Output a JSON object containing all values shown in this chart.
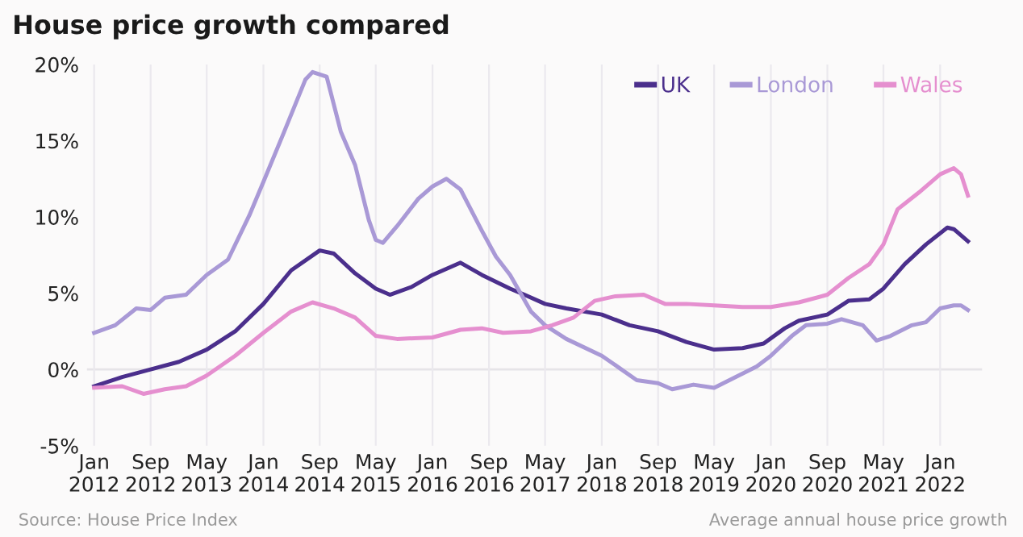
{
  "chart_data": {
    "type": "line",
    "title": "House price growth compared",
    "annotations": [
      "Source: House Price Index",
      "Average annual house price growth"
    ],
    "legend": "top right",
    "grid": "x",
    "line_style": "solid",
    "marker": "none",
    "ylim": [
      -5,
      20
    ],
    "yticks": [
      {
        "value": -5,
        "label": "-5%"
      },
      {
        "value": 0,
        "label": "0%"
      },
      {
        "value": 5,
        "label": "5%"
      },
      {
        "value": 10,
        "label": "10%"
      },
      {
        "value": 15,
        "label": "15%"
      },
      {
        "value": 20,
        "label": "20%"
      }
    ],
    "xlim": [
      "2011-12",
      "2022-07"
    ],
    "xticks": [
      {
        "value": "2012-01",
        "label": "Jan\n2012"
      },
      {
        "value": "2012-09",
        "label": "Sep\n2012"
      },
      {
        "value": "2013-05",
        "label": "May\n2013"
      },
      {
        "value": "2014-01",
        "label": "Jan\n2014"
      },
      {
        "value": "2014-09",
        "label": "Sep\n2014"
      },
      {
        "value": "2015-05",
        "label": "May\n2015"
      },
      {
        "value": "2016-01",
        "label": "Jan\n2016"
      },
      {
        "value": "2016-09",
        "label": "Sep\n2016"
      },
      {
        "value": "2017-05",
        "label": "May\n2017"
      },
      {
        "value": "2018-01",
        "label": "Jan\n2018"
      },
      {
        "value": "2018-09",
        "label": "Sep\n2018"
      },
      {
        "value": "2019-05",
        "label": "May\n2019"
      },
      {
        "value": "2020-01",
        "label": "Jan\n2020"
      },
      {
        "value": "2020-09",
        "label": "Sep\n2020"
      },
      {
        "value": "2021-05",
        "label": "May\n2021"
      },
      {
        "value": "2022-01",
        "label": "Jan\n2022"
      }
    ],
    "ref_lines": [
      {
        "axis": "y",
        "value": 0,
        "color": "#e6e4e8"
      }
    ],
    "series": [
      {
        "name": "UK",
        "color": "#4b2f8c",
        "x": [
          "2012-01",
          "2012-05",
          "2012-09",
          "2013-01",
          "2013-05",
          "2013-09",
          "2014-01",
          "2014-05",
          "2014-09",
          "2014-11",
          "2015-02",
          "2015-05",
          "2015-07",
          "2015-10",
          "2016-01",
          "2016-05",
          "2016-08",
          "2016-12",
          "2017-02",
          "2017-05",
          "2017-08",
          "2018-01",
          "2018-05",
          "2018-09",
          "2019-01",
          "2019-05",
          "2019-09",
          "2019-12",
          "2020-03",
          "2020-05",
          "2020-09",
          "2020-12",
          "2021-03",
          "2021-05",
          "2021-08",
          "2021-11",
          "2022-02",
          "2022-03",
          "2022-05"
        ],
        "values": [
          -1.1,
          -0.5,
          0,
          0.5,
          1.3,
          2.5,
          4.3,
          6.5,
          7.8,
          7.6,
          6.3,
          5.3,
          4.9,
          5.4,
          6.2,
          7.0,
          6.2,
          5.3,
          4.9,
          4.3,
          4.0,
          3.6,
          2.9,
          2.5,
          1.8,
          1.3,
          1.4,
          1.7,
          2.7,
          3.2,
          3.6,
          4.5,
          4.6,
          5.3,
          6.9,
          8.2,
          9.3,
          9.2,
          8.4
        ]
      },
      {
        "name": "London",
        "color": "#a999d6",
        "x": [
          "2012-01",
          "2012-04",
          "2012-07",
          "2012-09",
          "2012-11",
          "2013-02",
          "2013-05",
          "2013-08",
          "2013-11",
          "2014-01",
          "2014-04",
          "2014-07",
          "2014-08",
          "2014-10",
          "2014-12",
          "2015-02",
          "2015-04",
          "2015-05",
          "2015-06",
          "2015-08",
          "2015-11",
          "2016-01",
          "2016-03",
          "2016-05",
          "2016-08",
          "2016-10",
          "2016-12",
          "2017-03",
          "2017-05",
          "2017-08",
          "2018-01",
          "2018-06",
          "2018-09",
          "2018-11",
          "2019-02",
          "2019-05",
          "2019-08",
          "2019-11",
          "2020-01",
          "2020-04",
          "2020-06",
          "2020-09",
          "2020-11",
          "2021-02",
          "2021-04",
          "2021-06",
          "2021-09",
          "2021-11",
          "2022-01",
          "2022-03",
          "2022-04",
          "2022-05"
        ],
        "values": [
          2.4,
          2.9,
          4.0,
          3.9,
          4.7,
          4.9,
          6.2,
          7.2,
          10.1,
          12.3,
          15.6,
          19.0,
          19.5,
          19.2,
          15.6,
          13.4,
          9.8,
          8.5,
          8.3,
          9.4,
          11.2,
          12.0,
          12.5,
          11.8,
          9.1,
          7.4,
          6.2,
          3.8,
          2.9,
          2.0,
          0.9,
          -0.7,
          -0.9,
          -1.3,
          -1.0,
          -1.2,
          -0.5,
          0.2,
          0.9,
          2.2,
          2.9,
          3.0,
          3.3,
          2.9,
          1.9,
          2.2,
          2.9,
          3.1,
          4.0,
          4.2,
          4.2,
          3.9
        ]
      },
      {
        "name": "Wales",
        "color": "#e58fcf",
        "x": [
          "2012-01",
          "2012-05",
          "2012-08",
          "2012-11",
          "2013-02",
          "2013-05",
          "2013-09",
          "2014-01",
          "2014-05",
          "2014-08",
          "2014-11",
          "2015-02",
          "2015-05",
          "2015-08",
          "2016-01",
          "2016-05",
          "2016-08",
          "2016-11",
          "2017-03",
          "2017-06",
          "2017-09",
          "2017-12",
          "2018-03",
          "2018-07",
          "2018-10",
          "2019-01",
          "2019-05",
          "2019-09",
          "2020-01",
          "2020-05",
          "2020-09",
          "2020-12",
          "2021-03",
          "2021-05",
          "2021-07",
          "2021-10",
          "2022-01",
          "2022-03",
          "2022-04",
          "2022-05"
        ],
        "values": [
          -1.2,
          -1.1,
          -1.6,
          -1.3,
          -1.1,
          -0.4,
          0.9,
          2.4,
          3.8,
          4.4,
          4.0,
          3.4,
          2.2,
          2.0,
          2.1,
          2.6,
          2.7,
          2.4,
          2.5,
          2.9,
          3.4,
          4.5,
          4.8,
          4.9,
          4.3,
          4.3,
          4.2,
          4.1,
          4.1,
          4.4,
          4.9,
          6.0,
          6.9,
          8.2,
          10.5,
          11.6,
          12.8,
          13.2,
          12.8,
          11.4
        ]
      }
    ]
  }
}
